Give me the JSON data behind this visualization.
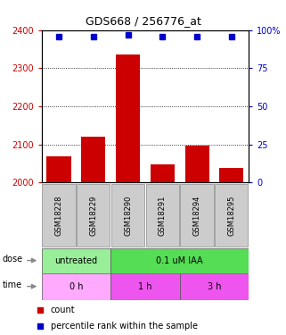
{
  "title": "GDS668 / 256776_at",
  "samples": [
    "GSM18228",
    "GSM18229",
    "GSM18290",
    "GSM18291",
    "GSM18294",
    "GSM18295"
  ],
  "bar_values": [
    2068,
    2120,
    2335,
    2048,
    2098,
    2038
  ],
  "percentile_values": [
    96,
    96,
    97,
    96,
    96,
    96
  ],
  "ylim_left": [
    2000,
    2400
  ],
  "ylim_right": [
    0,
    100
  ],
  "yticks_left": [
    2000,
    2100,
    2200,
    2300,
    2400
  ],
  "yticks_right": [
    0,
    25,
    50,
    75,
    100
  ],
  "bar_color": "#cc0000",
  "square_color": "#0000cc",
  "dose_groups": [
    {
      "label": "untreated",
      "cols": [
        0,
        1
      ],
      "color": "#99ee99"
    },
    {
      "label": "0.1 uM IAA",
      "cols": [
        2,
        3,
        4,
        5
      ],
      "color": "#55dd55"
    }
  ],
  "time_groups": [
    {
      "label": "0 h",
      "cols": [
        0,
        1
      ],
      "color": "#ffaaff"
    },
    {
      "label": "1 h",
      "cols": [
        2,
        3
      ],
      "color": "#ee55ee"
    },
    {
      "label": "3 h",
      "cols": [
        4,
        5
      ],
      "color": "#ee55ee"
    }
  ],
  "dose_label": "dose",
  "time_label": "time",
  "legend_count_color": "#cc0000",
  "legend_pct_color": "#0000cc",
  "tick_label_color_left": "#cc0000",
  "tick_label_color_right": "#0000cc",
  "grid_color": "#000000",
  "xticklabel_bg": "#cccccc"
}
